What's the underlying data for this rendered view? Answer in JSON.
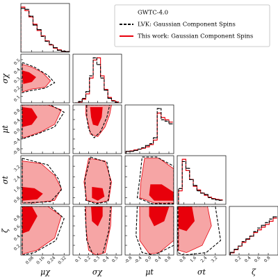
{
  "chart_data": {
    "type": "corner",
    "legend_title": "GWTC-4.0",
    "series": [
      {
        "name": "LVK: Gaussian Component Spins",
        "color": "#000000",
        "style": "dashed"
      },
      {
        "name": "This work: Gaussian Component Spins",
        "color": "#e8000b",
        "fill": [
          "#f6a5a5",
          "#e8000b"
        ]
      }
    ],
    "params": [
      {
        "label": "μχ",
        "lim": [
          0,
          0.36
        ],
        "ticks": [
          0.08,
          0.16,
          0.24,
          0.32
        ],
        "bins": [
          0,
          0.03,
          0.06,
          0.09,
          0.12,
          0.15,
          0.18,
          0.21,
          0.24,
          0.27,
          0.3,
          0.33,
          0.36
        ],
        "hist": [
          [
            0.97,
            0.95,
            0.8,
            0.6,
            0.5,
            0.35,
            0.24,
            0.17,
            0.1,
            0.04,
            0.02,
            0.01
          ],
          [
            1,
            0.92,
            0.78,
            0.62,
            0.48,
            0.36,
            0.25,
            0.16,
            0.09,
            0.05,
            0.02,
            0.01
          ]
        ],
        "pairs": []
      },
      {
        "label": "σχ",
        "lim": [
          0.03,
          0.56
        ],
        "ticks": [
          0.1,
          0.2,
          0.3,
          0.4,
          0.5
        ],
        "bins": [
          0.05,
          0.09,
          0.13,
          0.17,
          0.21,
          0.25,
          0.29,
          0.33,
          0.37,
          0.41,
          0.45,
          0.49,
          0.53
        ],
        "hist": [
          [
            0,
            0.03,
            0.1,
            0.25,
            0.6,
            1,
            0.85,
            0.55,
            0.28,
            0.1,
            0.04,
            0.01
          ],
          [
            0,
            0.02,
            0.08,
            0.2,
            0.55,
            0.95,
            1,
            0.6,
            0.3,
            0.12,
            0.05,
            0.02
          ]
        ],
        "pairs": [
          {
            "lvk": {
              "x": [
                0.01,
                0.1,
                0.2,
                0.25,
                0.18,
                0.06,
                0.01
              ],
              "y": [
                0.47,
                0.42,
                0.33,
                0.25,
                0.19,
                0.16,
                0.14
              ]
            },
            "this_work_90": {
              "x": [
                0.01,
                0.08,
                0.16,
                0.22,
                0.18,
                0.08,
                0.01
              ],
              "y": [
                0.45,
                0.42,
                0.36,
                0.27,
                0.2,
                0.18,
                0.15
              ]
            },
            "this_work_50": {
              "x": [
                0.01,
                0.06,
                0.11,
                0.08,
                0.02
              ],
              "y": [
                0.38,
                0.36,
                0.31,
                0.26,
                0.24
              ]
            }
          }
        ]
      },
      {
        "label": "μt",
        "lim": [
          -1,
          1
        ],
        "ticks": [
          -0.8,
          -0.4,
          {
            "value": 0,
            "label": "0.0"
          },
          0.4,
          0.8
        ],
        "bins": [
          -0.96,
          -0.8,
          -0.64,
          -0.48,
          -0.32,
          -0.16,
          0,
          0.16,
          0.32,
          0.48,
          0.64,
          0.8,
          0.96
        ],
        "hist": [
          [
            0.05,
            0.05,
            0.07,
            0.1,
            0.13,
            0.18,
            0.22,
            0.35,
            1,
            0.75,
            0.72,
            0.66
          ],
          [
            0.05,
            0.06,
            0.08,
            0.1,
            0.12,
            0.15,
            0.2,
            0.3,
            0.9,
            0.8,
            0.75,
            0.7
          ]
        ],
        "pairs": [
          {
            "lvk": {
              "x": [
                0.01,
                0.22,
                0.32,
                0.25,
                0.12,
                0.01
              ],
              "y": [
                1,
                1,
                0.7,
                0.1,
                -0.2,
                -0.4
              ]
            },
            "this_work_90": {
              "x": [
                0.01,
                0.2,
                0.3,
                0.25,
                0.15,
                0.05,
                0.01
              ],
              "y": [
                1,
                1,
                0.8,
                0.2,
                -0.1,
                -0.3,
                -0.35
              ]
            },
            "this_work_50": {
              "x": [
                0.01,
                0.08,
                0.12,
                0.08,
                0.01
              ],
              "y": [
                0.9,
                0.85,
                0.5,
                0.2,
                0.1
              ]
            }
          },
          {
            "lvk": {
              "x": [
                0.18,
                0.43,
                0.4,
                0.33,
                0.26,
                0.2,
                0.18
              ],
              "y": [
                1,
                1,
                0.5,
                -0.1,
                -0.35,
                0,
                0.5
              ]
            },
            "this_work_90": {
              "x": [
                0.17,
                0.45,
                0.43,
                0.38,
                0.3,
                0.22,
                0.2,
                0.17
              ],
              "y": [
                1,
                1,
                0.6,
                0.1,
                -0.3,
                -0.2,
                0.2,
                0.6
              ]
            },
            "this_work_50": {
              "x": [
                0.22,
                0.35,
                0.34,
                0.3,
                0.25,
                0.23
              ],
              "y": [
                0.9,
                0.9,
                0.5,
                0.15,
                0.2,
                0.5
              ]
            }
          }
        ]
      },
      {
        "label": "σt",
        "lim": [
          0.3,
          4
        ],
        "ticks": [
          0.8,
          1.6,
          2.4,
          3.2
        ],
        "bins": [
          0.4,
          0.68,
          0.96,
          1.24,
          1.52,
          1.8,
          2.08,
          2.36,
          2.64,
          2.92,
          3.2,
          3.48,
          3.76
        ],
        "hist": [
          [
            0.35,
            0.95,
            0.8,
            0.55,
            0.42,
            0.3,
            0.25,
            0.22,
            0.15,
            0.12,
            0.1,
            0.09
          ],
          [
            0.3,
            1,
            0.75,
            0.55,
            0.4,
            0.32,
            0.25,
            0.2,
            0.16,
            0.13,
            0.11,
            0.1
          ]
        ],
        "pairs": [
          {
            "lvk": {
              "x": [
                0.01,
                0.2,
                0.28,
                0.3,
                0.22,
                0.01
              ],
              "y": [
                3.8,
                3.3,
                2.2,
                1.4,
                0.5,
                0.4
              ]
            },
            "this_work_90": {
              "x": [
                0.01,
                0.15,
                0.25,
                0.3,
                0.25,
                0.1,
                0.01
              ],
              "y": [
                3.6,
                3.4,
                2.5,
                1.5,
                0.6,
                0.4,
                0.4
              ]
            },
            "this_work_50": {
              "x": [
                0.01,
                0.1,
                0.16,
                0.12,
                0.01
              ],
              "y": [
                1.6,
                1.5,
                1.1,
                0.7,
                0.6
              ]
            }
          },
          {
            "lvk": {
              "x": [
                0.22,
                0.4,
                0.44,
                0.41,
                0.28,
                0.17,
                0.16
              ],
              "y": [
                3.9,
                3.5,
                2,
                0.5,
                0.35,
                0.6,
                2.2
              ]
            },
            "this_work_90": {
              "x": [
                0.2,
                0.38,
                0.45,
                0.42,
                0.3,
                0.18,
                0.15
              ],
              "y": [
                3.8,
                3.6,
                2,
                0.6,
                0.4,
                0.6,
                2
              ]
            },
            "this_work_50": {
              "x": [
                0.24,
                0.35,
                0.37,
                0.3,
                0.24
              ],
              "y": [
                1.6,
                1.5,
                0.9,
                0.6,
                0.8
              ]
            }
          },
          {
            "lvk": {
              "x": [
                -0.3,
                0.3,
                1,
                1,
                0.1,
                -0.5,
                -0.4
              ],
              "y": [
                3.9,
                3.9,
                3.2,
                0.35,
                0.35,
                0.8,
                2.2
              ]
            },
            "this_work_90": {
              "x": [
                -0.2,
                0.4,
                1,
                1,
                0.2,
                -0.4,
                -0.35
              ],
              "y": [
                3.8,
                3.8,
                3,
                0.4,
                0.4,
                0.8,
                2
              ]
            },
            "this_work_50": {
              "x": [
                0.05,
                0.5,
                1,
                1,
                0.2,
                0
              ],
              "y": [
                1.8,
                1.8,
                1.2,
                0.6,
                0.6,
                1
              ]
            }
          }
        ]
      },
      {
        "label": "ζ",
        "lim": [
          0,
          1
        ],
        "ticks": [
          0.2,
          0.4,
          0.6,
          0.8
        ],
        "bins": [
          0.02,
          0.1,
          0.18,
          0.26,
          0.34,
          0.42,
          0.5,
          0.58,
          0.66,
          0.74,
          0.82,
          0.9,
          0.98
        ],
        "hist": [
          [
            0.06,
            0.13,
            0.2,
            0.3,
            0.36,
            0.42,
            0.52,
            0.6,
            0.66,
            0.72,
            0.8,
            0.85
          ],
          [
            0.05,
            0.12,
            0.2,
            0.28,
            0.35,
            0.42,
            0.5,
            0.56,
            0.62,
            0.68,
            0.75,
            0.82
          ]
        ],
        "pairs": [
          {
            "lvk": {
              "x": [
                0.01,
                0.22,
                0.32,
                0.26,
                0.1,
                0.01
              ],
              "y": [
                1,
                1,
                0.75,
                0.3,
                0.05,
                0
              ]
            },
            "this_work_90": {
              "x": [
                0.01,
                0.2,
                0.3,
                0.25,
                0.12,
                0.01
              ],
              "y": [
                1,
                1,
                0.8,
                0.35,
                0.1,
                0.02
              ]
            },
            "this_work_50": {
              "x": [
                0.01,
                0.08,
                0.12,
                0.06,
                0.01
              ],
              "y": [
                1,
                1,
                0.8,
                0.5,
                0.45
              ]
            }
          },
          {
            "lvk": {
              "x": [
                0.16,
                0.44,
                0.42,
                0.35,
                0.25,
                0.18
              ],
              "y": [
                1,
                1,
                0.5,
                0,
                0,
                0.3
              ]
            },
            "this_work_90": {
              "x": [
                0.17,
                0.45,
                0.44,
                0.38,
                0.28,
                0.2,
                0.17
              ],
              "y": [
                1,
                1,
                0.6,
                0.05,
                0,
                0.1,
                0.6
              ]
            },
            "this_work_50": {
              "x": [
                0.23,
                0.35,
                0.35,
                0.3,
                0.24
              ],
              "y": [
                1,
                1,
                0.8,
                0.6,
                0.7
              ]
            }
          },
          {
            "lvk": {
              "x": [
                -0.5,
                1,
                1,
                0.2,
                -0.3,
                -0.55
              ],
              "y": [
                1,
                1,
                0.2,
                0,
                0.05,
                0.4
              ]
            },
            "this_work_90": {
              "x": [
                -0.4,
                1,
                1,
                0.4,
                0,
                -0.4
              ],
              "y": [
                1,
                1,
                0.3,
                0.05,
                0.02,
                0.3
              ]
            },
            "this_work_50": {
              "x": [
                0,
                0.8,
                0.6,
                0.2,
                0
              ],
              "y": [
                1,
                1,
                0.7,
                0.6,
                0.8
              ]
            }
          },
          {
            "lvk": {
              "x": [
                0.35,
                3.2,
                3.6,
                2.5,
                0.8,
                0.35
              ],
              "y": [
                1,
                1,
                0.3,
                0.05,
                0,
                0.05
              ]
            },
            "this_work_90": {
              "x": [
                0.4,
                2.6,
                2.9,
                2.2,
                1,
                0.4
              ],
              "y": [
                1,
                1,
                0.6,
                0.2,
                0.05,
                0.1
              ]
            },
            "this_work_50": {
              "x": [
                0.4,
                1.4,
                1.6,
                1,
                0.4
              ],
              "y": [
                1,
                1,
                0.7,
                0.5,
                0.55
              ]
            }
          }
        ]
      }
    ]
  }
}
